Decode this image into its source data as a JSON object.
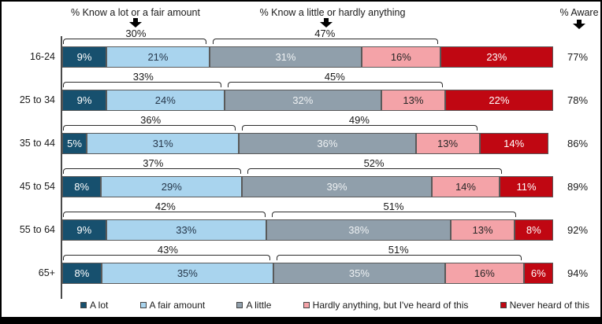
{
  "chart_data": {
    "type": "bar",
    "subtype": "horizontal-stacked",
    "header_left": "% Know a lot or a fair amount",
    "header_middle": "% Know a little or hardly anything",
    "header_right": "% Aware",
    "categories": [
      "16-24",
      "25 to 34",
      "35 to 44",
      "45 to 54",
      "55 to 64",
      "65+"
    ],
    "series": [
      {
        "name": "A lot",
        "color": "#17506e",
        "text_color": "#ffffff",
        "values": [
          9,
          9,
          5,
          8,
          9,
          8
        ]
      },
      {
        "name": "A fair amount",
        "color": "#a9d4ee",
        "text_color": "#26374a",
        "values": [
          21,
          24,
          31,
          29,
          33,
          35
        ]
      },
      {
        "name": "A little",
        "color": "#909fab",
        "text_color": "#eef1f3",
        "values": [
          31,
          32,
          36,
          39,
          38,
          35
        ]
      },
      {
        "name": "Hardly anything, but I've heard of this",
        "color": "#f4a3a8",
        "text_color": "#272727",
        "values": [
          16,
          13,
          13,
          14,
          13,
          16
        ]
      },
      {
        "name": "Never heard of this",
        "color": "#c00712",
        "text_color": "#ffffff",
        "values": [
          23,
          22,
          14,
          11,
          8,
          6
        ]
      }
    ],
    "bracket_know_lot_fair": [
      30,
      33,
      36,
      37,
      42,
      43
    ],
    "bracket_know_little_hardly": [
      47,
      45,
      49,
      52,
      51,
      51
    ],
    "aware": [
      77,
      78,
      86,
      89,
      92,
      94
    ],
    "value_suffix": "%",
    "xlim": [
      0,
      100
    ],
    "legend_position": "bottom",
    "grid": false
  }
}
